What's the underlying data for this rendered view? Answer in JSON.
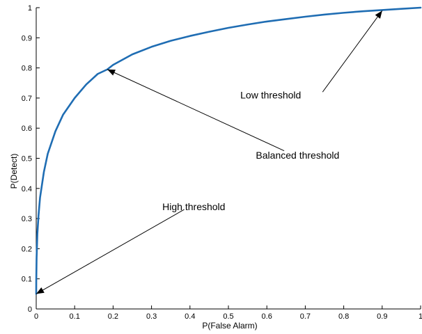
{
  "chart_data": {
    "type": "line",
    "title": "",
    "xlabel": "P(False Alarm)",
    "ylabel": "P(Detect)",
    "xlim": [
      0,
      1
    ],
    "ylim": [
      0,
      1
    ],
    "xticks": [
      "0",
      "0.1",
      "0.2",
      "0.3",
      "0.4",
      "0.5",
      "0.6",
      "0.7",
      "0.8",
      "0.9",
      "1"
    ],
    "yticks": [
      "0",
      "0.1",
      "0.2",
      "0.3",
      "0.4",
      "0.5",
      "0.6",
      "0.7",
      "0.8",
      "0.9",
      "1"
    ],
    "grid": false,
    "series": [
      {
        "color": "#1f6db3",
        "x": [
          0,
          0.0001,
          0.001,
          0.003,
          0.006,
          0.01,
          0.02,
          0.03,
          0.05,
          0.07,
          0.1,
          0.13,
          0.16,
          0.185,
          0.2,
          0.25,
          0.3,
          0.35,
          0.4,
          0.45,
          0.5,
          0.55,
          0.6,
          0.65,
          0.7,
          0.75,
          0.8,
          0.85,
          0.9,
          0.95,
          1.0
        ],
        "y": [
          0.05,
          0.09,
          0.17,
          0.25,
          0.31,
          0.37,
          0.455,
          0.515,
          0.59,
          0.645,
          0.7,
          0.745,
          0.78,
          0.795,
          0.81,
          0.845,
          0.87,
          0.89,
          0.906,
          0.92,
          0.933,
          0.944,
          0.954,
          0.962,
          0.97,
          0.977,
          0.983,
          0.988,
          0.992,
          0.996,
          1.0
        ]
      }
    ],
    "annotations": [
      {
        "text": "Low threshold",
        "text_at": [
          0.61,
          0.71
        ],
        "arrow_from": [
          0.745,
          0.72
        ],
        "arrow_to": [
          0.9,
          0.99
        ]
      },
      {
        "text": "Balanced threshold",
        "text_at": [
          0.68,
          0.51
        ],
        "arrow_from": [
          0.645,
          0.525
        ],
        "arrow_to": [
          0.185,
          0.795
        ]
      },
      {
        "text": "High threshold",
        "text_at": [
          0.41,
          0.34
        ],
        "arrow_from": [
          0.385,
          0.33
        ],
        "arrow_to": [
          0.0,
          0.05
        ]
      }
    ]
  }
}
